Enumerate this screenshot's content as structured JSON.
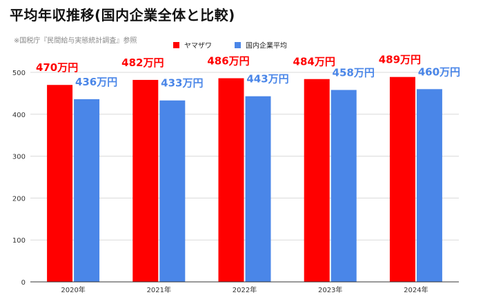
{
  "title": "平均年収推移(国内企業全体と比較)",
  "subtitle": "※国税庁『民間給与実態統計調査』参照",
  "chart_data": {
    "type": "bar",
    "categories": [
      "2020年",
      "2021年",
      "2022年",
      "2023年",
      "2024年"
    ],
    "series": [
      {
        "name": "ヤマザワ",
        "color": "#ff0000",
        "values": [
          470,
          482,
          486,
          484,
          489
        ],
        "labels": [
          "470万円",
          "482万円",
          "486万円",
          "484万円",
          "489万円"
        ]
      },
      {
        "name": "国内企業平均",
        "color": "#4a86e8",
        "values": [
          436,
          433,
          443,
          458,
          460
        ],
        "labels": [
          "436万円",
          "433万円",
          "443万円",
          "458万円",
          "460万円"
        ]
      }
    ],
    "yticks": [
      0,
      100,
      200,
      300,
      400,
      500
    ],
    "ylim": [
      0,
      500
    ],
    "grid": true,
    "legend": "top-center"
  }
}
